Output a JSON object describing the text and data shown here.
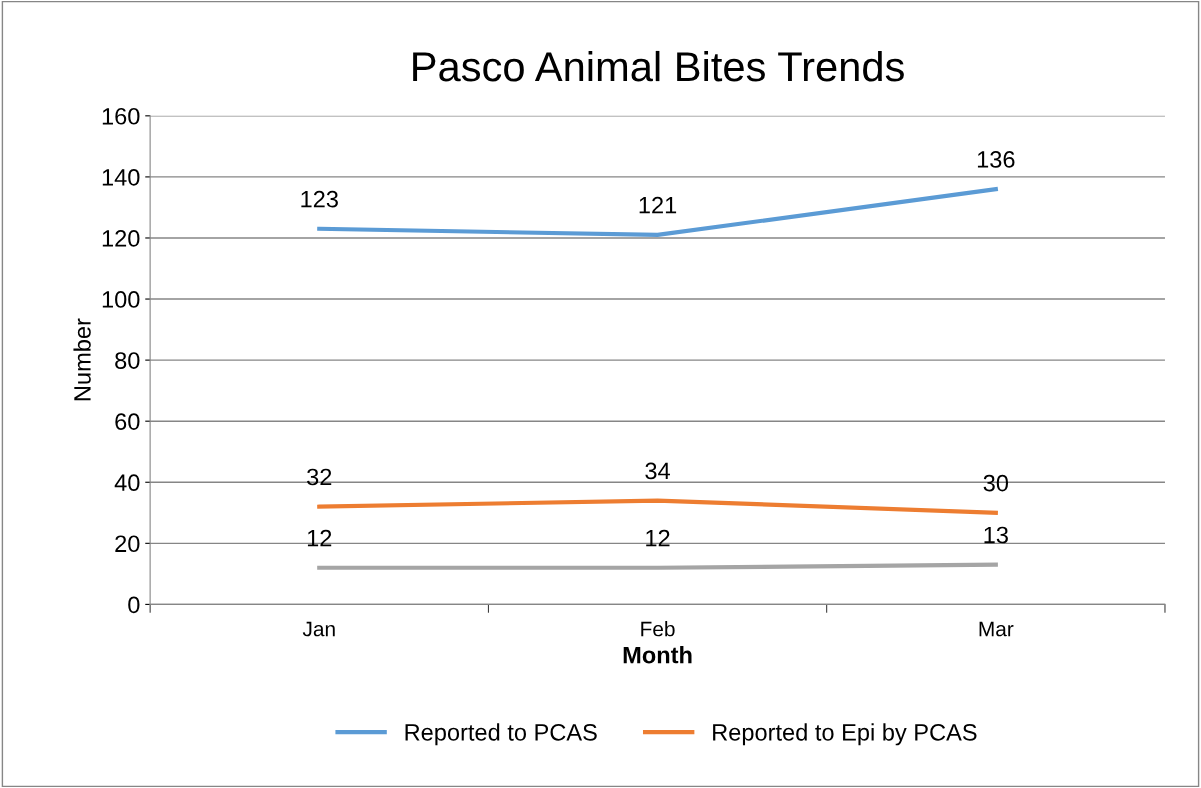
{
  "chart_data": {
    "type": "line",
    "title": "Pasco Animal Bites Trends",
    "xlabel": "Month",
    "ylabel": "Number",
    "categories": [
      "Jan",
      "Feb",
      "Mar"
    ],
    "series": [
      {
        "name": "Reported to PCAS",
        "color": "#5b9bd5",
        "values": [
          123,
          121,
          136
        ]
      },
      {
        "name": "Reported to Epi by PCAS",
        "color": "#ed7d31",
        "values": [
          32,
          34,
          30
        ]
      },
      {
        "color": "#a5a5a5",
        "values": [
          12,
          12,
          13
        ]
      }
    ],
    "ylim": [
      0,
      160
    ],
    "yticks": [
      0,
      20,
      40,
      60,
      80,
      100,
      120,
      140,
      160
    ],
    "grid": "y",
    "legend": "bottom",
    "data_labels": true,
    "marker": "none",
    "line_style": "solid"
  }
}
